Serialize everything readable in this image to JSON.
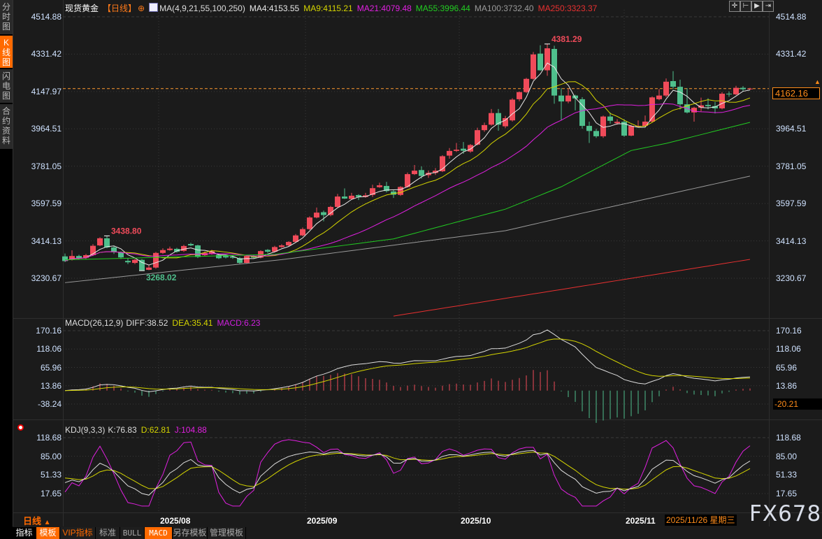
{
  "sidebar": {
    "tabs": [
      {
        "label": "分时图",
        "active": false
      },
      {
        "label": "K线图",
        "active": true
      },
      {
        "label": "闪电图",
        "active": false
      },
      {
        "label": "合约资料",
        "active": false
      }
    ]
  },
  "header": {
    "symbol": "现货黄金",
    "period": "【日线】",
    "ma_params": "MA(4,9,21,55,100,250)",
    "ma_values": [
      {
        "label": "MA4:4153.55",
        "color": "#e8e8e8"
      },
      {
        "label": "MA9:4115.21",
        "color": "#d4d400"
      },
      {
        "label": "MA21:4079.48",
        "color": "#e020e0"
      },
      {
        "label": "MA55:3996.44",
        "color": "#22cc22"
      },
      {
        "label": "MA100:3732.40",
        "color": "#9a9a9a"
      },
      {
        "label": "MA250:3323.37",
        "color": "#e83030"
      }
    ]
  },
  "top_icons": [
    "crosshair-icon",
    "zoom-range-icon",
    "play-forward-icon",
    "scroll-end-icon"
  ],
  "colors": {
    "up": "#f04b5a",
    "down": "#4fbf8c",
    "accent": "#ff6a00",
    "price_line": "#ff9a30"
  },
  "chart_data": [
    {
      "type": "candlestick",
      "y_ticks": [
        "4514.88",
        "4331.42",
        "4147.97",
        "3964.51",
        "3781.05",
        "3597.59",
        "3414.13",
        "3230.67"
      ],
      "ylim": [
        3230.67,
        4514.88
      ],
      "grid": true,
      "current_price": "4162.16",
      "annotations": [
        {
          "text": "4381.29",
          "candle": 69,
          "kind": "high"
        },
        {
          "text": "3438.80",
          "candle": 6,
          "kind": "high"
        },
        {
          "text": "3268.02",
          "candle": 11,
          "kind": "low"
        }
      ],
      "ohlc": [
        [
          3338,
          3352,
          3310,
          3315
        ],
        [
          3323,
          3368,
          3318,
          3340
        ],
        [
          3340,
          3346,
          3322,
          3329
        ],
        [
          3331,
          3350,
          3325,
          3344
        ],
        [
          3344,
          3398,
          3340,
          3390
        ],
        [
          3392,
          3432,
          3388,
          3427
        ],
        [
          3427,
          3438.8,
          3378,
          3382
        ],
        [
          3382,
          3390,
          3350,
          3359
        ],
        [
          3359,
          3362,
          3325,
          3333
        ],
        [
          3316,
          3330,
          3300,
          3309
        ],
        [
          3306,
          3326,
          3300,
          3321
        ],
        [
          3321,
          3325,
          3268.02,
          3270
        ],
        [
          3272,
          3295,
          3270,
          3283
        ],
        [
          3283,
          3360,
          3278,
          3355
        ],
        [
          3355,
          3378,
          3350,
          3369
        ],
        [
          3369,
          3386,
          3366,
          3376
        ],
        [
          3375,
          3380,
          3356,
          3361
        ],
        [
          3365,
          3395,
          3360,
          3389
        ],
        [
          3399,
          3405,
          3388,
          3392
        ],
        [
          3392,
          3395,
          3330,
          3335
        ],
        [
          3344,
          3362,
          3340,
          3355
        ],
        [
          3350,
          3370,
          3346,
          3363
        ],
        [
          3346,
          3350,
          3325,
          3329
        ],
        [
          3340,
          3345,
          3328,
          3333
        ],
        [
          3336,
          3342,
          3326,
          3331
        ],
        [
          3329,
          3335,
          3300,
          3306
        ],
        [
          3306,
          3345,
          3302,
          3340
        ],
        [
          3340,
          3346,
          3328,
          3332
        ],
        [
          3332,
          3368,
          3328,
          3364
        ],
        [
          3370,
          3374,
          3355,
          3361
        ],
        [
          3361,
          3390,
          3357,
          3384
        ],
        [
          3384,
          3398,
          3380,
          3392
        ],
        [
          3392,
          3413,
          3388,
          3409
        ],
        [
          3409,
          3448,
          3405,
          3441
        ],
        [
          3441,
          3480,
          3437,
          3472
        ],
        [
          3472,
          3535,
          3468,
          3529
        ],
        [
          3529,
          3578,
          3525,
          3553
        ],
        [
          3555,
          3563,
          3510,
          3541
        ],
        [
          3541,
          3586,
          3535,
          3581
        ],
        [
          3581,
          3645,
          3577,
          3632
        ],
        [
          3632,
          3672,
          3620,
          3622
        ],
        [
          3620,
          3650,
          3617,
          3636
        ],
        [
          3639,
          3643,
          3615,
          3630
        ],
        [
          3630,
          3650,
          3626,
          3638
        ],
        [
          3640,
          3690,
          3630,
          3673
        ],
        [
          3678,
          3700,
          3675,
          3687
        ],
        [
          3684,
          3704,
          3652,
          3659
        ],
        [
          3657,
          3665,
          3625,
          3641
        ],
        [
          3640,
          3683,
          3635,
          3679
        ],
        [
          3679,
          3750,
          3676,
          3742
        ],
        [
          3742,
          3787,
          3738,
          3759
        ],
        [
          3762,
          3780,
          3720,
          3733
        ],
        [
          3737,
          3760,
          3724,
          3748
        ],
        [
          3748,
          3772,
          3738,
          3759
        ],
        [
          3756,
          3835,
          3752,
          3830
        ],
        [
          3833,
          3870,
          3818,
          3856
        ],
        [
          3856,
          3895,
          3851,
          3862
        ],
        [
          3867,
          3900,
          3842,
          3857
        ],
        [
          3853,
          3890,
          3847,
          3885
        ],
        [
          3887,
          3970,
          3883,
          3958
        ],
        [
          3958,
          3995,
          3950,
          3983
        ],
        [
          3985,
          4062,
          3980,
          4042
        ],
        [
          4042,
          4062,
          3955,
          3985
        ],
        [
          3977,
          4028,
          3968,
          4017
        ],
        [
          4006,
          4115,
          4000,
          4108
        ],
        [
          4110,
          4148,
          4100,
          4145
        ],
        [
          4145,
          4215,
          4140,
          4210
        ],
        [
          4210,
          4342,
          4205,
          4330
        ],
        [
          4334,
          4375,
          4250,
          4252
        ],
        [
          4252,
          4381.29,
          4225,
          4360
        ],
        [
          4357,
          4373,
          4088,
          4128
        ],
        [
          4128,
          4165,
          4007,
          4099
        ],
        [
          4099,
          4160,
          4090,
          4128
        ],
        [
          4128,
          4132,
          4055,
          4114
        ],
        [
          4110,
          4120,
          3965,
          3979
        ],
        [
          3979,
          4000,
          3895,
          3954
        ],
        [
          3954,
          3965,
          3920,
          3928
        ],
        [
          3928,
          4030,
          3920,
          4025
        ],
        [
          4025,
          4045,
          3990,
          4004
        ],
        [
          3992,
          4012,
          3985,
          3999
        ],
        [
          3999,
          4012,
          3925,
          3931
        ],
        [
          3931,
          3985,
          3928,
          3979
        ],
        [
          3979,
          4006,
          3972,
          3979
        ],
        [
          3979,
          4030,
          3975,
          4000
        ],
        [
          4000,
          4124,
          3995,
          4119
        ],
        [
          4110,
          4160,
          4105,
          4128
        ],
        [
          4128,
          4212,
          4120,
          4196
        ],
        [
          4199,
          4248,
          4160,
          4171
        ],
        [
          4171,
          4206,
          4060,
          4085
        ],
        [
          4085,
          4164,
          4040,
          4045
        ],
        [
          4045,
          4073,
          4000,
          4068
        ],
        [
          4068,
          4118,
          4050,
          4080
        ],
        [
          4082,
          4115,
          4060,
          4076
        ],
        [
          4076,
          4096,
          4040,
          4065
        ],
        [
          4065,
          4145,
          4060,
          4137
        ],
        [
          4137,
          4148,
          4122,
          4134
        ],
        [
          4134,
          4176,
          4130,
          4166
        ],
        [
          4166,
          4174,
          4150,
          4159
        ],
        [
          4159,
          4166,
          4155,
          4162.16
        ]
      ],
      "ma_series": [
        {
          "period": 4,
          "color": "#e8e8e8"
        },
        {
          "period": 9,
          "color": "#d4d400"
        },
        {
          "period": 21,
          "color": "#e020e0"
        },
        {
          "period": 55,
          "color": "#22cc22",
          "points": [
            [
              0,
              3321
            ],
            [
              30,
              3348
            ],
            [
              47,
              3424
            ],
            [
              63,
              3570
            ],
            [
              71,
              3680
            ],
            [
              81,
              3858
            ],
            [
              86,
              3893
            ],
            [
              98,
              3996.44
            ]
          ]
        },
        {
          "period": 100,
          "color": "#9a9a9a",
          "points": [
            [
              0,
              3209
            ],
            [
              31,
              3322
            ],
            [
              63,
              3464
            ],
            [
              72,
              3535
            ],
            [
              98,
              3732.4
            ]
          ]
        },
        {
          "period": 250,
          "color": "#e83030",
          "points": [
            [
              47,
              3045
            ],
            [
              70,
              3170
            ],
            [
              98,
              3323.37
            ]
          ]
        }
      ],
      "x_labels": [
        {
          "text": "2025/08",
          "candle": 13.4
        },
        {
          "text": "2025/09",
          "candle": 34.4
        },
        {
          "text": "2025/10",
          "candle": 56.4
        },
        {
          "text": "2025/11",
          "candle": 80
        }
      ]
    },
    {
      "type": "macd",
      "title": "MACD(26,12,9)",
      "legend": [
        {
          "label": "DIFF:38.52",
          "color": "#dddddd"
        },
        {
          "label": "DEA:35.41",
          "color": "#d4d400"
        },
        {
          "label": "MACD:6.23",
          "color": "#d020e0"
        }
      ],
      "y_ticks": [
        "170.16",
        "118.06",
        "65.96",
        "13.86",
        "-38.24"
      ],
      "ylim": [
        -38.24,
        170.16
      ],
      "cursor_value": "-20.21"
    },
    {
      "type": "kdj",
      "title": "KDJ(9,3,3)",
      "legend": [
        {
          "label": "K:76.83",
          "color": "#dddddd"
        },
        {
          "label": "D:62.81",
          "color": "#d4d400"
        },
        {
          "label": "J:104.88",
          "color": "#e020e0"
        }
      ],
      "y_ticks": [
        "118.68",
        "85.00",
        "51.33",
        "17.65"
      ],
      "ylim": [
        17.65,
        118.68
      ]
    }
  ],
  "footer": {
    "period_label": "日线",
    "cursor_date": "2025/11/26 星期三",
    "watermark": "FX678",
    "toolbar": [
      "指标",
      "模板",
      "VIP指标",
      "标准",
      "BULL",
      "MACD",
      "另存模板",
      "管理模板"
    ]
  }
}
